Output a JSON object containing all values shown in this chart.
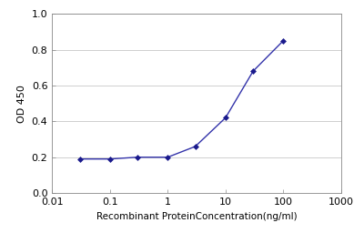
{
  "x_values": [
    0.03,
    0.1,
    0.3,
    1.0,
    3.0,
    10.0,
    30.0,
    100.0
  ],
  "y_values": [
    0.19,
    0.19,
    0.2,
    0.2,
    0.26,
    0.42,
    0.68,
    0.85
  ],
  "line_color": "#3333aa",
  "marker_color": "#1a1a8c",
  "marker_style": "D",
  "marker_size": 3,
  "line_width": 1.0,
  "xlabel": "Recombinant ProteinConcentration(ng/ml)",
  "ylabel": "OD 450",
  "xlim": [
    0.01,
    1000
  ],
  "ylim": [
    0,
    1
  ],
  "yticks": [
    0,
    0.2,
    0.4,
    0.6,
    0.8,
    1
  ],
  "xtick_labels": [
    "0.01",
    "0.1",
    "1",
    "10",
    "100",
    "1000"
  ],
  "xtick_values": [
    0.01,
    0.1,
    1,
    10,
    100,
    1000
  ],
  "background_color": "#ffffff",
  "fig_background_color": "#ffffff",
  "grid_color": "#c8c8c8",
  "xlabel_fontsize": 7.5,
  "ylabel_fontsize": 8,
  "tick_fontsize": 8
}
